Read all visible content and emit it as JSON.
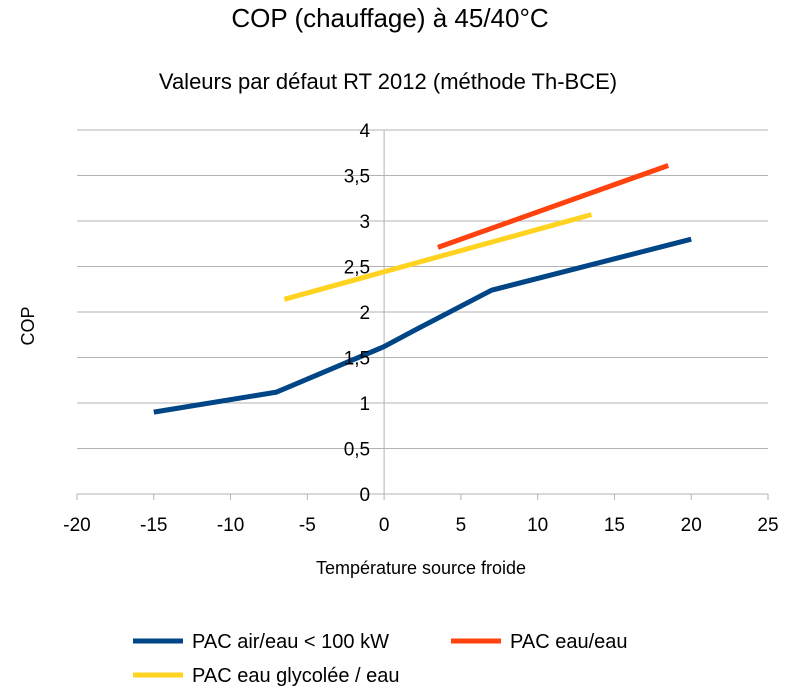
{
  "chart_data": {
    "type": "line",
    "title": "COP (chauffage) à 45/40°C",
    "subtitle": "Valeurs par défaut RT 2012 (méthode Th-BCE)",
    "xlabel": "Température source froide",
    "ylabel": "COP",
    "xlim": [
      -20,
      25
    ],
    "ylim": [
      0,
      4
    ],
    "xticks": [
      -20,
      -15,
      -10,
      -5,
      0,
      5,
      10,
      15,
      20,
      25
    ],
    "xtick_labels": [
      "-20",
      "-15",
      "-10",
      "-5",
      "0",
      "5",
      "10",
      "15",
      "20",
      "25"
    ],
    "yticks": [
      0,
      0.5,
      1,
      1.5,
      2,
      2.5,
      3,
      3.5,
      4
    ],
    "ytick_labels": [
      "0",
      "0,5",
      "1",
      "1,5",
      "2",
      "2,5",
      "3",
      "3,5",
      "4"
    ],
    "grid": true,
    "legend_position": "bottom",
    "series": [
      {
        "name": "PAC air/eau < 100 kW",
        "color": "#004586",
        "x": [
          -15,
          -7,
          0,
          2,
          7,
          20
        ],
        "y": [
          0.9,
          1.12,
          1.62,
          1.8,
          2.24,
          2.8
        ]
      },
      {
        "name": "PAC eau/eau",
        "color": "#ff420e",
        "x": [
          3.5,
          18.5
        ],
        "y": [
          2.71,
          3.61
        ]
      },
      {
        "name": "PAC eau glycolée / eau",
        "color": "#ffd320",
        "x": [
          -6.5,
          13.5
        ],
        "y": [
          2.14,
          3.07
        ]
      }
    ]
  }
}
